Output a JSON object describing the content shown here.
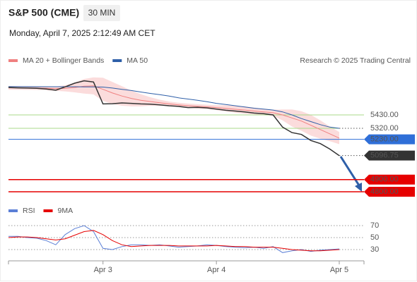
{
  "header": {
    "symbol": "S&P 500 (CME)",
    "interval": "30 MIN",
    "timestamp": "Monday, April 7, 2025 2:12:49 AM CET",
    "copyright": "Research © 2025 Trading Central"
  },
  "chart_data": [
    {
      "type": "line",
      "categories": [
        null,
        null,
        null,
        null,
        null,
        null,
        null,
        null,
        null,
        null,
        "Apr 3",
        null,
        null,
        null,
        null,
        null,
        null,
        null,
        null,
        null,
        null,
        null,
        "Apr 4",
        null,
        null,
        null,
        null,
        null,
        null,
        null,
        null,
        null,
        null,
        null,
        null,
        "Apr 5"
      ],
      "values": [
        5655,
        5652,
        5650,
        5648,
        5642,
        5632,
        5660,
        5690,
        5710,
        5700,
        5520,
        5522,
        5528,
        5525,
        5520,
        5518,
        5512,
        5505,
        5500,
        5490,
        5492,
        5488,
        5478,
        5468,
        5462,
        5455,
        5445,
        5440,
        5430,
        5330,
        5285,
        5270,
        5220,
        5195,
        5150,
        5096.75
      ],
      "color": "#333333",
      "series": [
        {
          "name": "MA 20 + Bollinger Bands",
          "color": "#f08080",
          "values": [
            5652,
            5652,
            5651,
            5650,
            5648,
            5645,
            5648,
            5655,
            5665,
            5668,
            5640,
            5610,
            5585,
            5565,
            5550,
            5540,
            5530,
            5520,
            5512,
            5505,
            5500,
            5496,
            5490,
            5484,
            5476,
            5470,
            5462,
            5455,
            5448,
            5430,
            5405,
            5380,
            5345,
            5310,
            5275,
            5240
          ],
          "upper": [
            5667,
            5667,
            5666,
            5665,
            5664,
            5663,
            5673,
            5695,
            5725,
            5738,
            5735,
            5700,
            5665,
            5630,
            5600,
            5575,
            5555,
            5540,
            5530,
            5523,
            5518,
            5514,
            5510,
            5509,
            5504,
            5500,
            5490,
            5480,
            5473,
            5475,
            5475,
            5460,
            5430,
            5385,
            5335,
            5290
          ],
          "lower": [
            5637,
            5637,
            5636,
            5635,
            5632,
            5627,
            5623,
            5615,
            5605,
            5598,
            5545,
            5520,
            5505,
            5500,
            5500,
            5505,
            5505,
            5500,
            5494,
            5487,
            5482,
            5478,
            5470,
            5459,
            5448,
            5440,
            5434,
            5430,
            5423,
            5385,
            5335,
            5300,
            5260,
            5235,
            5215,
            5190
          ]
        },
        {
          "name": "MA 50",
          "color": "#2e5fa8",
          "values": [
            5662,
            5662,
            5662,
            5661,
            5661,
            5661,
            5661,
            5661,
            5660,
            5660,
            5658,
            5650,
            5640,
            5630,
            5618,
            5606,
            5596,
            5585,
            5570,
            5560,
            5550,
            5538,
            5525,
            5515,
            5505,
            5495,
            5485,
            5478,
            5470,
            5455,
            5430,
            5400,
            5375,
            5350,
            5330,
            5320
          ]
        }
      ],
      "levels": [
        {
          "value": 5430,
          "label": "5430.00",
          "color": "#a8d88a",
          "text_color": "#4d9a1c",
          "style": "text"
        },
        {
          "value": 5320,
          "label": "5320.00",
          "color": "#a8d88a",
          "text_color": "#4d9a1c",
          "style": "text"
        },
        {
          "value": 5230,
          "label": "5230.00",
          "color": "#2f6fd8",
          "text_color": "#ffffff",
          "style": "box"
        },
        {
          "value": 5096.75,
          "label": "5096.75",
          "color": "#333333",
          "text_color": "#ffffff",
          "style": "box"
        },
        {
          "value": 4900,
          "label": "4900.00",
          "color": "#e60000",
          "text_color": "#ffffff",
          "style": "box"
        },
        {
          "value": 4800,
          "label": "4800.00",
          "color": "#e60000",
          "text_color": "#ffffff",
          "style": "box"
        }
      ],
      "ylim": [
        4696,
        5823
      ]
    },
    {
      "type": "line",
      "series": [
        {
          "name": "RSI",
          "color": "#5b7fd6",
          "values": [
            52,
            52,
            50,
            49,
            45,
            38,
            55,
            65,
            70,
            60,
            32,
            30,
            35,
            38,
            38,
            37,
            38,
            36,
            34,
            35,
            36,
            38,
            37,
            35,
            34,
            33,
            34,
            32,
            35,
            25,
            28,
            30,
            27,
            29,
            30,
            31
          ]
        },
        {
          "name": "9MA",
          "color": "#e60000",
          "values": [
            50,
            51,
            51,
            50,
            48,
            46,
            48,
            54,
            60,
            62,
            55,
            45,
            38,
            35,
            36,
            37,
            37,
            37,
            36,
            36,
            36,
            36,
            37,
            36,
            35,
            35,
            34,
            34,
            34,
            32,
            30,
            29,
            28,
            28,
            29,
            30
          ]
        }
      ],
      "ylim": [
        15,
        80
      ],
      "yticks": [
        30,
        50,
        70
      ]
    }
  ]
}
